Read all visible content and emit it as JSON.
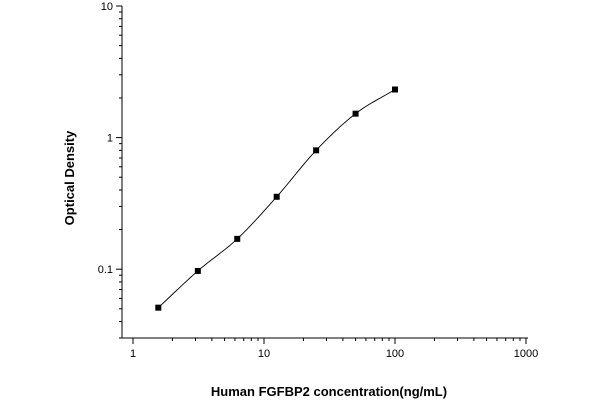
{
  "chart_data": {
    "type": "scatter",
    "title": "",
    "xlabel": "Human FGFBP2 concentration(ng/mL)",
    "ylabel": "Optical Density",
    "x_scale": "log",
    "y_scale": "log",
    "xlim": [
      1,
      1000
    ],
    "ylim": [
      0.03,
      10
    ],
    "x_ticks": [
      {
        "value": 1,
        "label": "1"
      },
      {
        "value": 10,
        "label": "10"
      },
      {
        "value": 100,
        "label": "100"
      },
      {
        "value": 1000,
        "label": "1000"
      }
    ],
    "y_ticks": [
      {
        "value": 0.1,
        "label": "0.1"
      },
      {
        "value": 1,
        "label": "1"
      },
      {
        "value": 10,
        "label": "10"
      }
    ],
    "grid": false,
    "legend": "none",
    "series": [
      {
        "marker": "square",
        "color": "#000000",
        "points": [
          {
            "x": 1.56,
            "y": 0.051
          },
          {
            "x": 3.125,
            "y": 0.097
          },
          {
            "x": 6.25,
            "y": 0.17
          },
          {
            "x": 12.5,
            "y": 0.355
          },
          {
            "x": 25,
            "y": 0.8
          },
          {
            "x": 50,
            "y": 1.52
          },
          {
            "x": 100,
            "y": 2.32
          }
        ],
        "fit_curve": true
      }
    ]
  }
}
